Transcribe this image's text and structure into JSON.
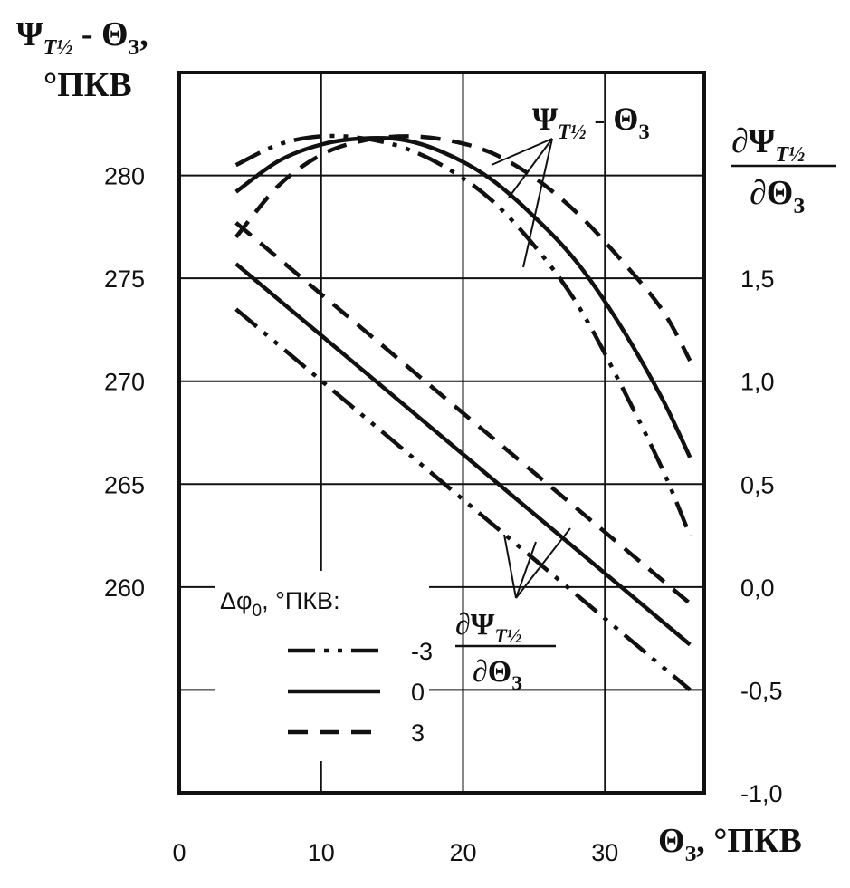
{
  "chart_data": {
    "type": "line",
    "x_label": {
      "main": "Θ",
      "sub": "З",
      "unit": ", °ПКВ"
    },
    "y_left_label": {
      "line1_main": "Ψ",
      "line1_sub": "T½",
      "line1_rest": " - Θ",
      "line1_rest_sub": "З",
      "line1_end": ",",
      "line2": "°ПКВ"
    },
    "y_right_label": {
      "num_main": "∂Ψ",
      "num_sub": "T½",
      "den_main": "∂Θ",
      "den_sub": "З"
    },
    "x_ticks": [
      0,
      10,
      20,
      30
    ],
    "x_tick_labels": [
      "0",
      "10",
      "20",
      "30"
    ],
    "x_range": [
      0,
      37
    ],
    "y_left_ticks": [
      260,
      265,
      270,
      275,
      280
    ],
    "y_left_tick_labels": [
      "260",
      "265",
      "270",
      "275",
      "280"
    ],
    "y_left_range": [
      250,
      285
    ],
    "y_right_ticks": [
      -1.0,
      -0.5,
      0.0,
      0.5,
      1.0,
      1.5
    ],
    "y_right_tick_labels": [
      "-1,0",
      "-0,5",
      "0,0",
      "0,5",
      "1,0",
      "1,5"
    ],
    "y_right_range": [
      -1.0,
      2.5
    ],
    "legend": {
      "title_main": "Δφ",
      "title_sub": "0",
      "title_rest": ", °ПКВ:",
      "entries": [
        {
          "label": "-3",
          "style": "dashdotdot"
        },
        {
          "label": "0",
          "style": "solid"
        },
        {
          "label": "3",
          "style": "dashed"
        }
      ]
    },
    "annotations": {
      "top": {
        "main": "Ψ",
        "sub": "T½",
        "rest": " - Θ",
        "rest_sub": "З"
      },
      "bottom": {
        "num_main": "∂Ψ",
        "num_sub": "T½",
        "den_main": "∂Θ",
        "den_sub": "З"
      }
    },
    "series": [
      {
        "group": "psi",
        "delta_phi": "-3",
        "style": "dashdotdot",
        "axis": "left",
        "x": [
          4,
          7,
          10,
          13,
          16,
          19,
          22,
          25,
          28,
          31,
          34,
          36
        ],
        "y": [
          280.5,
          281.5,
          281.9,
          281.8,
          281.3,
          280.3,
          278.8,
          276.6,
          273.8,
          270.0,
          265.8,
          262.5
        ]
      },
      {
        "group": "psi",
        "delta_phi": "0",
        "style": "solid",
        "axis": "left",
        "x": [
          4,
          7,
          10,
          13,
          16,
          19,
          22,
          25,
          28,
          31,
          34,
          36
        ],
        "y": [
          279.2,
          280.7,
          281.5,
          281.8,
          281.7,
          281.0,
          279.8,
          278.0,
          275.8,
          272.8,
          269.2,
          266.3
        ]
      },
      {
        "group": "psi",
        "delta_phi": "3",
        "style": "dashed",
        "axis": "left",
        "x": [
          4,
          7,
          10,
          13,
          16,
          19,
          22,
          25,
          28,
          31,
          34,
          36
        ],
        "y": [
          277.0,
          279.5,
          281.0,
          281.7,
          281.9,
          281.7,
          281.1,
          279.9,
          278.2,
          276.0,
          273.5,
          271.0
        ]
      },
      {
        "group": "derivative",
        "delta_phi": "-3",
        "style": "dashdotdot",
        "axis": "right",
        "x": [
          4,
          36
        ],
        "y": [
          1.35,
          -0.5
        ]
      },
      {
        "group": "derivative",
        "delta_phi": "0",
        "style": "solid",
        "axis": "right",
        "x": [
          4,
          36
        ],
        "y": [
          1.57,
          -0.28
        ]
      },
      {
        "group": "derivative",
        "delta_phi": "3",
        "style": "dashed",
        "axis": "right",
        "x": [
          4,
          36
        ],
        "y": [
          1.77,
          -0.08
        ]
      }
    ],
    "grid": true
  }
}
